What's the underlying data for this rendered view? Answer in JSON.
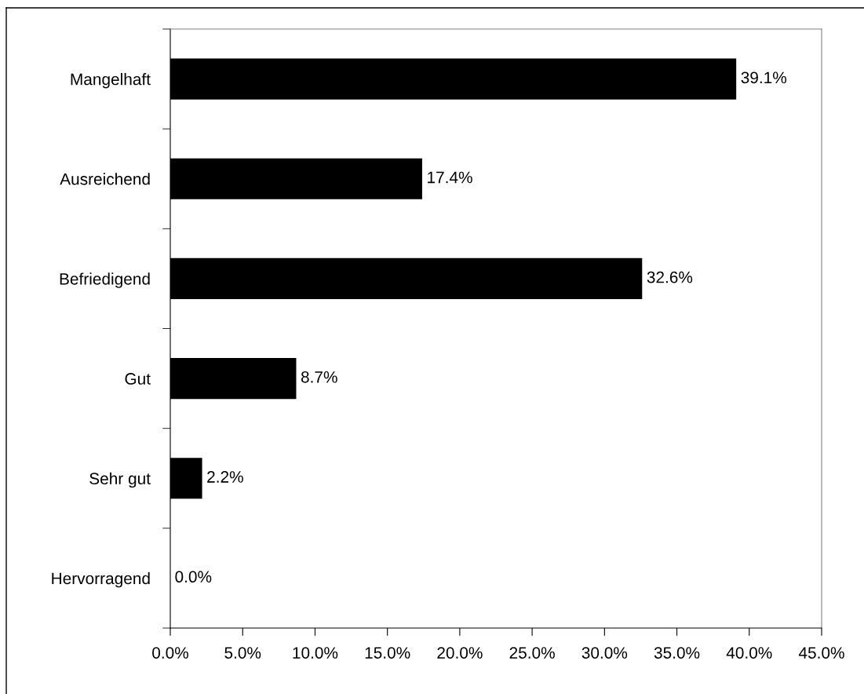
{
  "chart_data": {
    "type": "bar",
    "orientation": "horizontal",
    "categories": [
      "Mangelhaft",
      "Ausreichend",
      "Befriedigend",
      "Gut",
      "Sehr gut",
      "Hervorragend"
    ],
    "values": [
      39.1,
      17.4,
      32.6,
      8.7,
      2.2,
      0.0
    ],
    "value_labels": [
      "39.1%",
      "17.4%",
      "32.6%",
      "8.7%",
      "2.2%",
      "0.0%"
    ],
    "color": "#000000",
    "xlim": [
      0,
      45
    ],
    "xticks": [
      {
        "value": 0,
        "label": "0.0%"
      },
      {
        "value": 5,
        "label": "5.0%"
      },
      {
        "value": 10,
        "label": "10.0%"
      },
      {
        "value": 15,
        "label": "15.0%"
      },
      {
        "value": 20,
        "label": "20.0%"
      },
      {
        "value": 25,
        "label": "25.0%"
      },
      {
        "value": 30,
        "label": "30.0%"
      },
      {
        "value": 35,
        "label": "35.0%"
      },
      {
        "value": 40,
        "label": "40.0%"
      },
      {
        "value": 45,
        "label": "45.0%"
      }
    ],
    "grid": false,
    "legend": false
  }
}
